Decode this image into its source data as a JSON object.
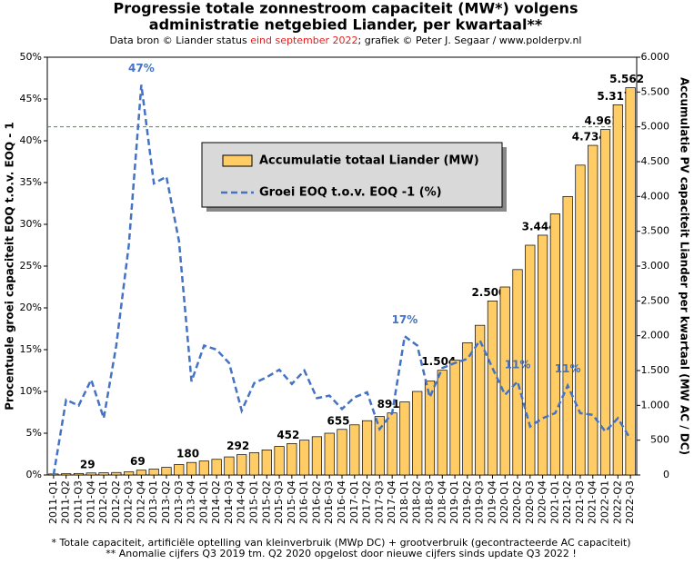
{
  "chart_data": {
    "type": "bar_line",
    "title": [
      "Progressie totale zonnestroom capaciteit  (MW*) volgens",
      "administratie  netgebied Liander, per kwartaal**"
    ],
    "subtitle": [
      "Data bron © Liander status ",
      "eind september 2022",
      "; grafiek © Peter J. Segaar / www.polderpv.nl"
    ],
    "footnotes": [
      "* Totale capaciteit, artificiële optelling van kleinverbruik (MWp DC) + grootverbruik (gecontracteerde AC capaciteit)",
      "** Anomalie cijfers Q3 2019 tm. Q2 2020 opgelost door nieuwe cijfers sinds update Q3 2022 !"
    ],
    "ylabel": "Procentuele  groei capaciteit EOQ t.o.v. EOQ - 1",
    "y2label": "Accumulatie  PV capaciteit Liander per kwartaal (MW AC / DC)",
    "categories": [
      "2011-Q1",
      "2011-Q2",
      "2011-Q3",
      "2011-Q4",
      "2012-Q1",
      "2012-Q2",
      "2012-Q3",
      "2012-Q4",
      "2013-Q1",
      "2013-Q2",
      "2013-Q3",
      "2013-Q4",
      "2014-Q1",
      "2014-Q2",
      "2014-Q3",
      "2014-Q4",
      "2015-Q1",
      "2015-Q2",
      "2015-Q3",
      "2015-Q4",
      "2016-Q1",
      "2016-Q2",
      "2016-Q3",
      "2016-Q4",
      "2017-Q1",
      "2017-Q2",
      "2017-Q3",
      "2017-Q4",
      "2018-Q1",
      "2018-Q2",
      "2018-Q3",
      "2018-Q4",
      "2019-Q1",
      "2019-Q2",
      "2019-Q3",
      "2019-Q4",
      "2020-Q1",
      "2020-Q2",
      "2020-Q3",
      "2020-Q4",
      "2021-Q1",
      "2021-Q2",
      "2021-Q3",
      "2021-Q4",
      "2022-Q1",
      "2022-Q2",
      "2022-Q3"
    ],
    "series": [
      {
        "name": "Accumulatie totaal Liander (MW)",
        "type": "bar",
        "axis": "y2",
        "color": "#ffcc66",
        "values": [
          15,
          18,
          22,
          29,
          32,
          36,
          45,
          69,
          85,
          110,
          150,
          180,
          200,
          225,
          260,
          292,
          320,
          360,
          410,
          452,
          500,
          550,
          600,
          655,
          720,
          780,
          840,
          891,
          1050,
          1200,
          1350,
          1504,
          1650,
          1900,
          2150,
          2500,
          2700,
          2950,
          3300,
          3444,
          3750,
          4000,
          4450,
          4734,
          4961,
          5317,
          5562
        ],
        "value_labels": [
          null,
          null,
          null,
          "29",
          null,
          null,
          null,
          "69",
          null,
          null,
          null,
          "180",
          null,
          null,
          null,
          "292",
          null,
          null,
          null,
          "452",
          null,
          null,
          null,
          "655",
          null,
          null,
          null,
          "891",
          null,
          null,
          null,
          "1.504",
          null,
          null,
          null,
          "2.500",
          null,
          null,
          null,
          "3.444",
          null,
          null,
          null,
          "4.734",
          "4.961",
          "5.317",
          "5.562"
        ]
      },
      {
        "name": "Groei EOQ t.o.v. EOQ -1 (%)",
        "type": "line",
        "axis": "y",
        "color": "#4472c4",
        "values": [
          0,
          9.0,
          8.3,
          11.4,
          6.8,
          15.5,
          27.5,
          46.7,
          34.9,
          35.7,
          28,
          11.2,
          15.5,
          15,
          13.4,
          7.7,
          11,
          11.7,
          12.6,
          10.9,
          12.5,
          9.2,
          9.5,
          7.9,
          9.3,
          9.9,
          5.5,
          7.4,
          16.6,
          15.5,
          9.3,
          12.8,
          13.4,
          13.9,
          16.1,
          12.8,
          9.6,
          11.2,
          5.8,
          6.8,
          7.4,
          10.7,
          7.4,
          7.2,
          5.2,
          6.8,
          4.3
        ],
        "value_labels": [
          null,
          null,
          null,
          null,
          null,
          null,
          null,
          "47%",
          null,
          null,
          null,
          null,
          null,
          null,
          null,
          null,
          null,
          null,
          null,
          null,
          null,
          null,
          null,
          null,
          null,
          null,
          null,
          null,
          "17%",
          null,
          null,
          null,
          null,
          null,
          null,
          null,
          null,
          "11%",
          null,
          null,
          null,
          "11%",
          null,
          null,
          null,
          null,
          null
        ]
      }
    ],
    "ylim": [
      0,
      50
    ],
    "yticks": [
      {
        "value": 0,
        "label": "0%"
      },
      {
        "value": 5,
        "label": "5%"
      },
      {
        "value": 10,
        "label": "10%"
      },
      {
        "value": 15,
        "label": "15%"
      },
      {
        "value": 20,
        "label": "20%"
      },
      {
        "value": 25,
        "label": "25%"
      },
      {
        "value": 30,
        "label": "30%"
      },
      {
        "value": 35,
        "label": "35%"
      },
      {
        "value": 40,
        "label": "40%"
      },
      {
        "value": 45,
        "label": "45%"
      },
      {
        "value": 50,
        "label": "50%"
      }
    ],
    "y2lim": [
      0,
      6000
    ],
    "y2ticks": [
      0,
      500,
      {
        "value": 1000,
        "label": "1.000"
      },
      {
        "value": 1500,
        "label": "1.500"
      },
      {
        "value": 2000,
        "label": "2.000"
      },
      {
        "value": 2500,
        "label": "2.500"
      },
      {
        "value": 3000,
        "label": "3.000"
      },
      {
        "value": 3500,
        "label": "3.500"
      },
      {
        "value": 4000,
        "label": "4.000"
      },
      {
        "value": 4500,
        "label": "4.500"
      },
      {
        "value": 5000,
        "label": "5.000"
      },
      {
        "value": 5500,
        "label": "5.500"
      },
      {
        "value": 6000,
        "label": "6.000"
      }
    ],
    "hline": {
      "value": 5000,
      "axis": "y2",
      "color": "#3a9a3a"
    }
  }
}
